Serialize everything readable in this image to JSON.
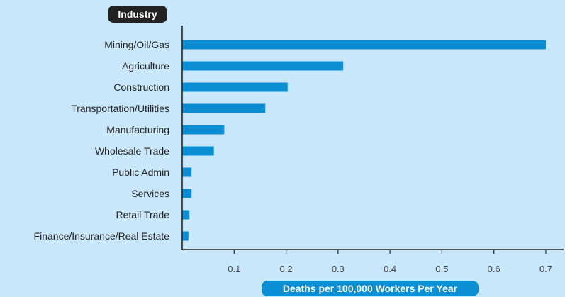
{
  "colors": {
    "background": "#c9e7fa",
    "bar": "#0a8fd4",
    "axis": "#222222",
    "label_bg": "#222222",
    "xlabel_bg": "#0a8fd4",
    "text": "#222222",
    "tick_text": "#444444",
    "label_text": "#ffffff"
  },
  "chart_data": {
    "type": "bar",
    "orientation": "horizontal",
    "ylabel": "Industry",
    "xlabel": "Deaths per 100,000 Workers Per Year",
    "categories": [
      "Mining/Oil/Gas",
      "Agriculture",
      "Construction",
      "Transportation/Utilities",
      "Manufacturing",
      "Wholesale Trade",
      "Public Admin",
      "Services",
      "Retail Trade",
      "Finance/Insurance/Real Estate"
    ],
    "values": [
      0.7,
      0.31,
      0.203,
      0.16,
      0.081,
      0.061,
      0.018,
      0.018,
      0.014,
      0.012
    ],
    "xlim": [
      0,
      0.73
    ],
    "xticks": [
      0.1,
      0.2,
      0.3,
      0.4,
      0.5,
      0.6,
      0.7
    ],
    "xtick_labels": [
      "0.1",
      "0.2",
      "0.3",
      "0.4",
      "0.5",
      "0.6",
      "0.7"
    ],
    "grid": false,
    "legend": "none"
  }
}
